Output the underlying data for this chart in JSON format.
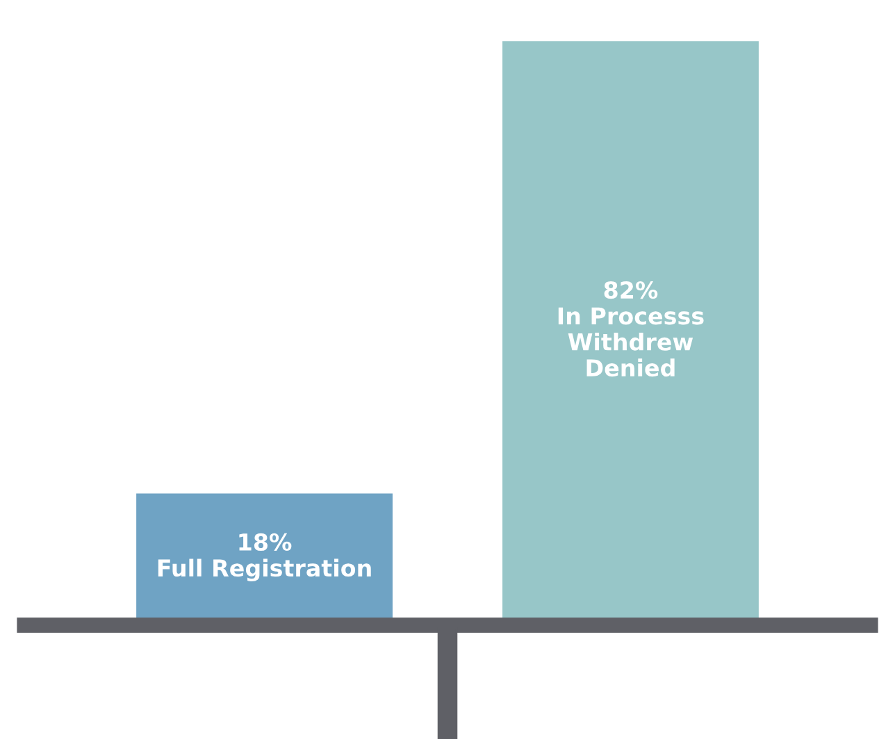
{
  "chart_data": {
    "type": "bar",
    "categories": [
      "Full Registration",
      "In Processs\nWithdrew\nDenied"
    ],
    "values": [
      18,
      82
    ],
    "colors": [
      "#6fa3c4",
      "#97c6c8"
    ],
    "value_labels": [
      "18%",
      "82%"
    ]
  }
}
